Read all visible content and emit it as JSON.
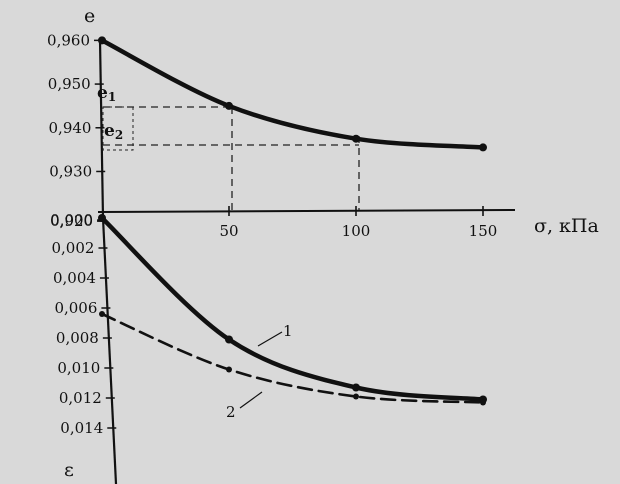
{
  "chart_data": [
    {
      "type": "line",
      "title": "",
      "xlabel": "σ, кПа",
      "ylabel": "e",
      "xlim": [
        0,
        155
      ],
      "ylim": [
        0.92,
        0.962
      ],
      "x_ticks": [
        "50",
        "100",
        "150"
      ],
      "y_ticks": [
        "0,960",
        "0,950",
        "0,940",
        "0,930",
        "0,920"
      ],
      "annotations": [
        "e1",
        "e2"
      ],
      "series": [
        {
          "name": "",
          "x": [
            0,
            50,
            100,
            150
          ],
          "y": [
            0.96,
            0.945,
            0.9375,
            0.9355
          ]
        }
      ],
      "grid": false,
      "colors": {
        "line": "#111111",
        "background": "#d9d9d9"
      }
    },
    {
      "type": "line",
      "title": "",
      "xlabel": "σ, кПа",
      "ylabel": "ε",
      "xlim": [
        0,
        155
      ],
      "ylim": [
        0.016,
        0.0
      ],
      "x_ticks": [
        "50",
        "100",
        "150"
      ],
      "y_ticks": [
        "0,000",
        "0,002",
        "0,004",
        "0,006",
        "0,008",
        "0,010",
        "0,012",
        "0,014"
      ],
      "series": [
        {
          "name": "1",
          "x": [
            0,
            50,
            100,
            150
          ],
          "y": [
            0.0,
            0.0081,
            0.0113,
            0.0121
          ],
          "style": "solid"
        },
        {
          "name": "2",
          "x": [
            0,
            50,
            100,
            150
          ],
          "y": [
            0.0064,
            0.0101,
            0.0119,
            0.0123
          ],
          "style": "dashed"
        }
      ],
      "grid": false,
      "colors": {
        "line": "#111111",
        "background": "#d9d9d9"
      }
    }
  ]
}
